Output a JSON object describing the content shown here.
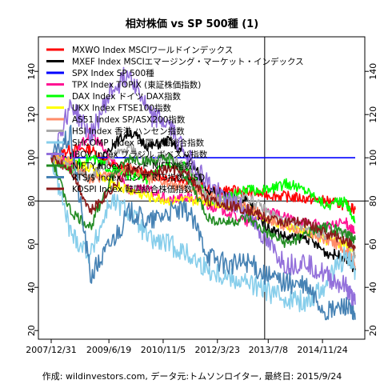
{
  "chart_data": {
    "type": "line",
    "title": "相対株価 vs SP 500種 (1)",
    "footer": "作成: wildinvestors.com, データ元:トムソンロイター, 最終日: 2015/9/24",
    "xlabel": "",
    "ylabel": "",
    "x_tick_labels": [
      "2007/12/31",
      "2009/6/19",
      "2010/11/5",
      "2012/3/23",
      "2013/7/8",
      "2014/11/24"
    ],
    "x_ticks": [
      "2007-12-31",
      "2009-06-19",
      "2010-11-05",
      "2012-03-23",
      "2013-07-08",
      "2014-11-24"
    ],
    "x_range": [
      "2007-12-31",
      "2015-09-24"
    ],
    "y_ticks": [
      20,
      40,
      60,
      80,
      100,
      120,
      140
    ],
    "ylim": [
      16,
      156
    ],
    "reference_lines": {
      "horizontal": [
        100,
        80
      ],
      "vertical": [
        "2013-06-05"
      ]
    },
    "legend_position": "top-left",
    "series": [
      {
        "name": "MXWO Index MSCIワールドインデックス",
        "color": "#ff0000",
        "values": [
          [
            "2007-12-31",
            100
          ],
          [
            "2008-06-30",
            104
          ],
          [
            "2008-12-31",
            104
          ],
          [
            "2009-06-30",
            97
          ],
          [
            "2009-12-31",
            95
          ],
          [
            "2010-06-30",
            92
          ],
          [
            "2010-12-31",
            91
          ],
          [
            "2011-06-30",
            90
          ],
          [
            "2011-12-31",
            85
          ],
          [
            "2012-06-30",
            85
          ],
          [
            "2012-12-31",
            84
          ],
          [
            "2013-06-30",
            83
          ],
          [
            "2013-12-31",
            82
          ],
          [
            "2014-06-30",
            81
          ],
          [
            "2014-12-31",
            80
          ],
          [
            "2015-06-30",
            78
          ],
          [
            "2015-09-24",
            76
          ]
        ]
      },
      {
        "name": "MXEF Index MSCIエマージング・マーケット・インデックス",
        "color": "#000000",
        "values": [
          [
            "2007-12-31",
            100
          ],
          [
            "2008-06-30",
            100
          ],
          [
            "2008-12-31",
            90
          ],
          [
            "2009-06-30",
            105
          ],
          [
            "2009-12-31",
            112
          ],
          [
            "2010-06-30",
            105
          ],
          [
            "2010-12-31",
            108
          ],
          [
            "2011-06-30",
            100
          ],
          [
            "2011-12-31",
            85
          ],
          [
            "2012-06-30",
            82
          ],
          [
            "2012-12-31",
            80
          ],
          [
            "2013-06-30",
            68
          ],
          [
            "2013-12-31",
            63
          ],
          [
            "2014-06-30",
            63
          ],
          [
            "2014-12-31",
            56
          ],
          [
            "2015-06-30",
            54
          ],
          [
            "2015-09-24",
            48
          ]
        ]
      },
      {
        "name": "SPX Index SP 500種",
        "color": "#0000ff",
        "values": [
          [
            "2007-12-31",
            100
          ],
          [
            "2015-09-24",
            100
          ]
        ]
      },
      {
        "name": "TPX Index TOPIX (東証株価指数)",
        "color": "#ff1493",
        "values": [
          [
            "2007-12-31",
            100
          ],
          [
            "2008-06-30",
            98
          ],
          [
            "2008-12-31",
            112
          ],
          [
            "2009-06-30",
            100
          ],
          [
            "2009-12-31",
            85
          ],
          [
            "2010-06-30",
            85
          ],
          [
            "2010-12-31",
            80
          ],
          [
            "2011-06-30",
            82
          ],
          [
            "2011-12-31",
            78
          ],
          [
            "2012-06-30",
            75
          ],
          [
            "2012-12-31",
            70
          ],
          [
            "2013-06-30",
            75
          ],
          [
            "2013-12-31",
            72
          ],
          [
            "2014-06-30",
            70
          ],
          [
            "2014-12-31",
            68
          ],
          [
            "2015-06-30",
            70
          ],
          [
            "2015-09-24",
            65
          ]
        ]
      },
      {
        "name": "DAX Index ドイツ DAX指数",
        "color": "#00ff00",
        "values": [
          [
            "2007-12-31",
            100
          ],
          [
            "2008-06-30",
            95
          ],
          [
            "2008-12-31",
            100
          ],
          [
            "2009-06-30",
            95
          ],
          [
            "2009-12-31",
            92
          ],
          [
            "2010-06-30",
            90
          ],
          [
            "2010-12-31",
            98
          ],
          [
            "2011-06-30",
            95
          ],
          [
            "2011-12-31",
            80
          ],
          [
            "2012-06-30",
            82
          ],
          [
            "2012-12-31",
            85
          ],
          [
            "2013-06-30",
            85
          ],
          [
            "2013-12-31",
            88
          ],
          [
            "2014-06-30",
            85
          ],
          [
            "2014-12-31",
            78
          ],
          [
            "2015-06-30",
            80
          ],
          [
            "2015-09-24",
            70
          ]
        ]
      },
      {
        "name": "UKX Index FTSE100指数",
        "color": "#ffff00",
        "values": [
          [
            "2007-12-31",
            100
          ],
          [
            "2008-06-30",
            98
          ],
          [
            "2008-12-31",
            95
          ],
          [
            "2009-06-30",
            88
          ],
          [
            "2009-12-31",
            85
          ],
          [
            "2010-06-30",
            82
          ],
          [
            "2010-12-31",
            80
          ],
          [
            "2011-06-30",
            80
          ],
          [
            "2011-12-31",
            80
          ],
          [
            "2012-06-30",
            78
          ],
          [
            "2012-12-31",
            76
          ],
          [
            "2013-06-30",
            72
          ],
          [
            "2013-12-31",
            68
          ],
          [
            "2014-06-30",
            66
          ],
          [
            "2014-12-31",
            62
          ],
          [
            "2015-06-30",
            60
          ],
          [
            "2015-09-24",
            55
          ]
        ]
      },
      {
        "name": "AS51 Index SP/ASX200指数",
        "color": "#ff8c69",
        "values": [
          [
            "2007-12-31",
            100
          ],
          [
            "2008-06-30",
            98
          ],
          [
            "2008-12-31",
            90
          ],
          [
            "2009-06-30",
            92
          ],
          [
            "2009-12-31",
            95
          ],
          [
            "2010-06-30",
            90
          ],
          [
            "2010-12-31",
            88
          ],
          [
            "2011-06-30",
            85
          ],
          [
            "2011-12-31",
            82
          ],
          [
            "2012-06-30",
            80
          ],
          [
            "2012-12-31",
            78
          ],
          [
            "2013-06-30",
            72
          ],
          [
            "2013-12-31",
            68
          ],
          [
            "2014-06-30",
            65
          ],
          [
            "2014-12-31",
            62
          ],
          [
            "2015-06-30",
            58
          ],
          [
            "2015-09-24",
            50
          ]
        ]
      },
      {
        "name": "HSI Index 香港 ハンセン指数",
        "color": "#a9a9a9",
        "values": [
          [
            "2007-12-31",
            100
          ],
          [
            "2008-06-30",
            95
          ],
          [
            "2008-12-31",
            90
          ],
          [
            "2009-06-30",
            100
          ],
          [
            "2009-12-31",
            105
          ],
          [
            "2010-06-30",
            98
          ],
          [
            "2010-12-31",
            100
          ],
          [
            "2011-06-30",
            95
          ],
          [
            "2011-12-31",
            80
          ],
          [
            "2012-06-30",
            80
          ],
          [
            "2012-12-31",
            82
          ],
          [
            "2013-06-30",
            75
          ],
          [
            "2013-12-31",
            70
          ],
          [
            "2014-06-30",
            68
          ],
          [
            "2014-12-31",
            64
          ],
          [
            "2015-06-30",
            65
          ],
          [
            "2015-09-24",
            55
          ]
        ]
      },
      {
        "name": "SHCOMP Index 中国上海総合指数",
        "color": "#87ceeb",
        "values": [
          [
            "2007-12-31",
            100
          ],
          [
            "2008-06-30",
            65
          ],
          [
            "2008-12-31",
            55
          ],
          [
            "2009-06-30",
            80
          ],
          [
            "2009-12-31",
            75
          ],
          [
            "2010-06-30",
            62
          ],
          [
            "2010-12-31",
            60
          ],
          [
            "2011-06-30",
            55
          ],
          [
            "2011-12-31",
            48
          ],
          [
            "2012-06-30",
            45
          ],
          [
            "2012-12-31",
            42
          ],
          [
            "2013-06-30",
            38
          ],
          [
            "2013-12-31",
            35
          ],
          [
            "2014-06-30",
            33
          ],
          [
            "2014-12-31",
            42
          ],
          [
            "2015-06-30",
            55
          ],
          [
            "2015-09-24",
            48
          ]
        ]
      },
      {
        "name": "IBOV Index ブラジル ボベスパ指数",
        "color": "#9370db",
        "values": [
          [
            "2007-12-31",
            100
          ],
          [
            "2008-06-30",
            125
          ],
          [
            "2008-12-31",
            110
          ],
          [
            "2009-06-30",
            130
          ],
          [
            "2009-12-31",
            140
          ],
          [
            "2010-06-30",
            120
          ],
          [
            "2010-12-31",
            115
          ],
          [
            "2011-06-30",
            100
          ],
          [
            "2011-12-31",
            88
          ],
          [
            "2012-06-30",
            80
          ],
          [
            "2012-12-31",
            75
          ],
          [
            "2013-06-30",
            60
          ],
          [
            "2013-12-31",
            50
          ],
          [
            "2014-06-30",
            52
          ],
          [
            "2014-12-31",
            45
          ],
          [
            "2015-06-30",
            40
          ],
          [
            "2015-09-24",
            32
          ]
        ]
      },
      {
        "name": "NIFTY Index インド NIFTY指数",
        "color": "#228b22",
        "values": [
          [
            "2007-12-31",
            100
          ],
          [
            "2008-06-30",
            75
          ],
          [
            "2008-12-31",
            68
          ],
          [
            "2009-06-30",
            90
          ],
          [
            "2009-12-31",
            100
          ],
          [
            "2010-06-30",
            98
          ],
          [
            "2010-12-31",
            100
          ],
          [
            "2011-06-30",
            90
          ],
          [
            "2011-12-31",
            72
          ],
          [
            "2012-06-30",
            70
          ],
          [
            "2012-12-31",
            72
          ],
          [
            "2013-06-30",
            65
          ],
          [
            "2013-12-31",
            60
          ],
          [
            "2014-06-30",
            65
          ],
          [
            "2014-12-31",
            68
          ],
          [
            "2015-06-30",
            65
          ],
          [
            "2015-09-24",
            62
          ]
        ]
      },
      {
        "name": "RTSI$ Index ロシア RTS指数 USD",
        "color": "#4682b4",
        "values": [
          [
            "2007-12-31",
            100
          ],
          [
            "2008-06-30",
            110
          ],
          [
            "2008-12-31",
            45
          ],
          [
            "2009-06-30",
            60
          ],
          [
            "2009-12-31",
            75
          ],
          [
            "2010-06-30",
            70
          ],
          [
            "2010-12-31",
            75
          ],
          [
            "2011-06-30",
            75
          ],
          [
            "2011-12-31",
            55
          ],
          [
            "2012-06-30",
            50
          ],
          [
            "2012-12-31",
            52
          ],
          [
            "2013-06-30",
            45
          ],
          [
            "2013-12-31",
            42
          ],
          [
            "2014-06-30",
            40
          ],
          [
            "2014-12-31",
            28
          ],
          [
            "2015-06-30",
            32
          ],
          [
            "2015-09-24",
            25
          ]
        ]
      },
      {
        "name": "KOSPI Index 韓国総合株価指数",
        "color": "#8b1a1a",
        "values": [
          [
            "2007-12-31",
            100
          ],
          [
            "2008-06-30",
            95
          ],
          [
            "2008-12-31",
            75
          ],
          [
            "2009-06-30",
            85
          ],
          [
            "2009-12-31",
            95
          ],
          [
            "2010-06-30",
            92
          ],
          [
            "2010-12-31",
            95
          ],
          [
            "2011-06-30",
            92
          ],
          [
            "2011-12-31",
            80
          ],
          [
            "2012-06-30",
            78
          ],
          [
            "2012-12-31",
            76
          ],
          [
            "2013-06-30",
            72
          ],
          [
            "2013-12-31",
            70
          ],
          [
            "2014-06-30",
            70
          ],
          [
            "2014-12-31",
            65
          ],
          [
            "2015-06-30",
            62
          ],
          [
            "2015-09-24",
            58
          ]
        ]
      }
    ]
  }
}
